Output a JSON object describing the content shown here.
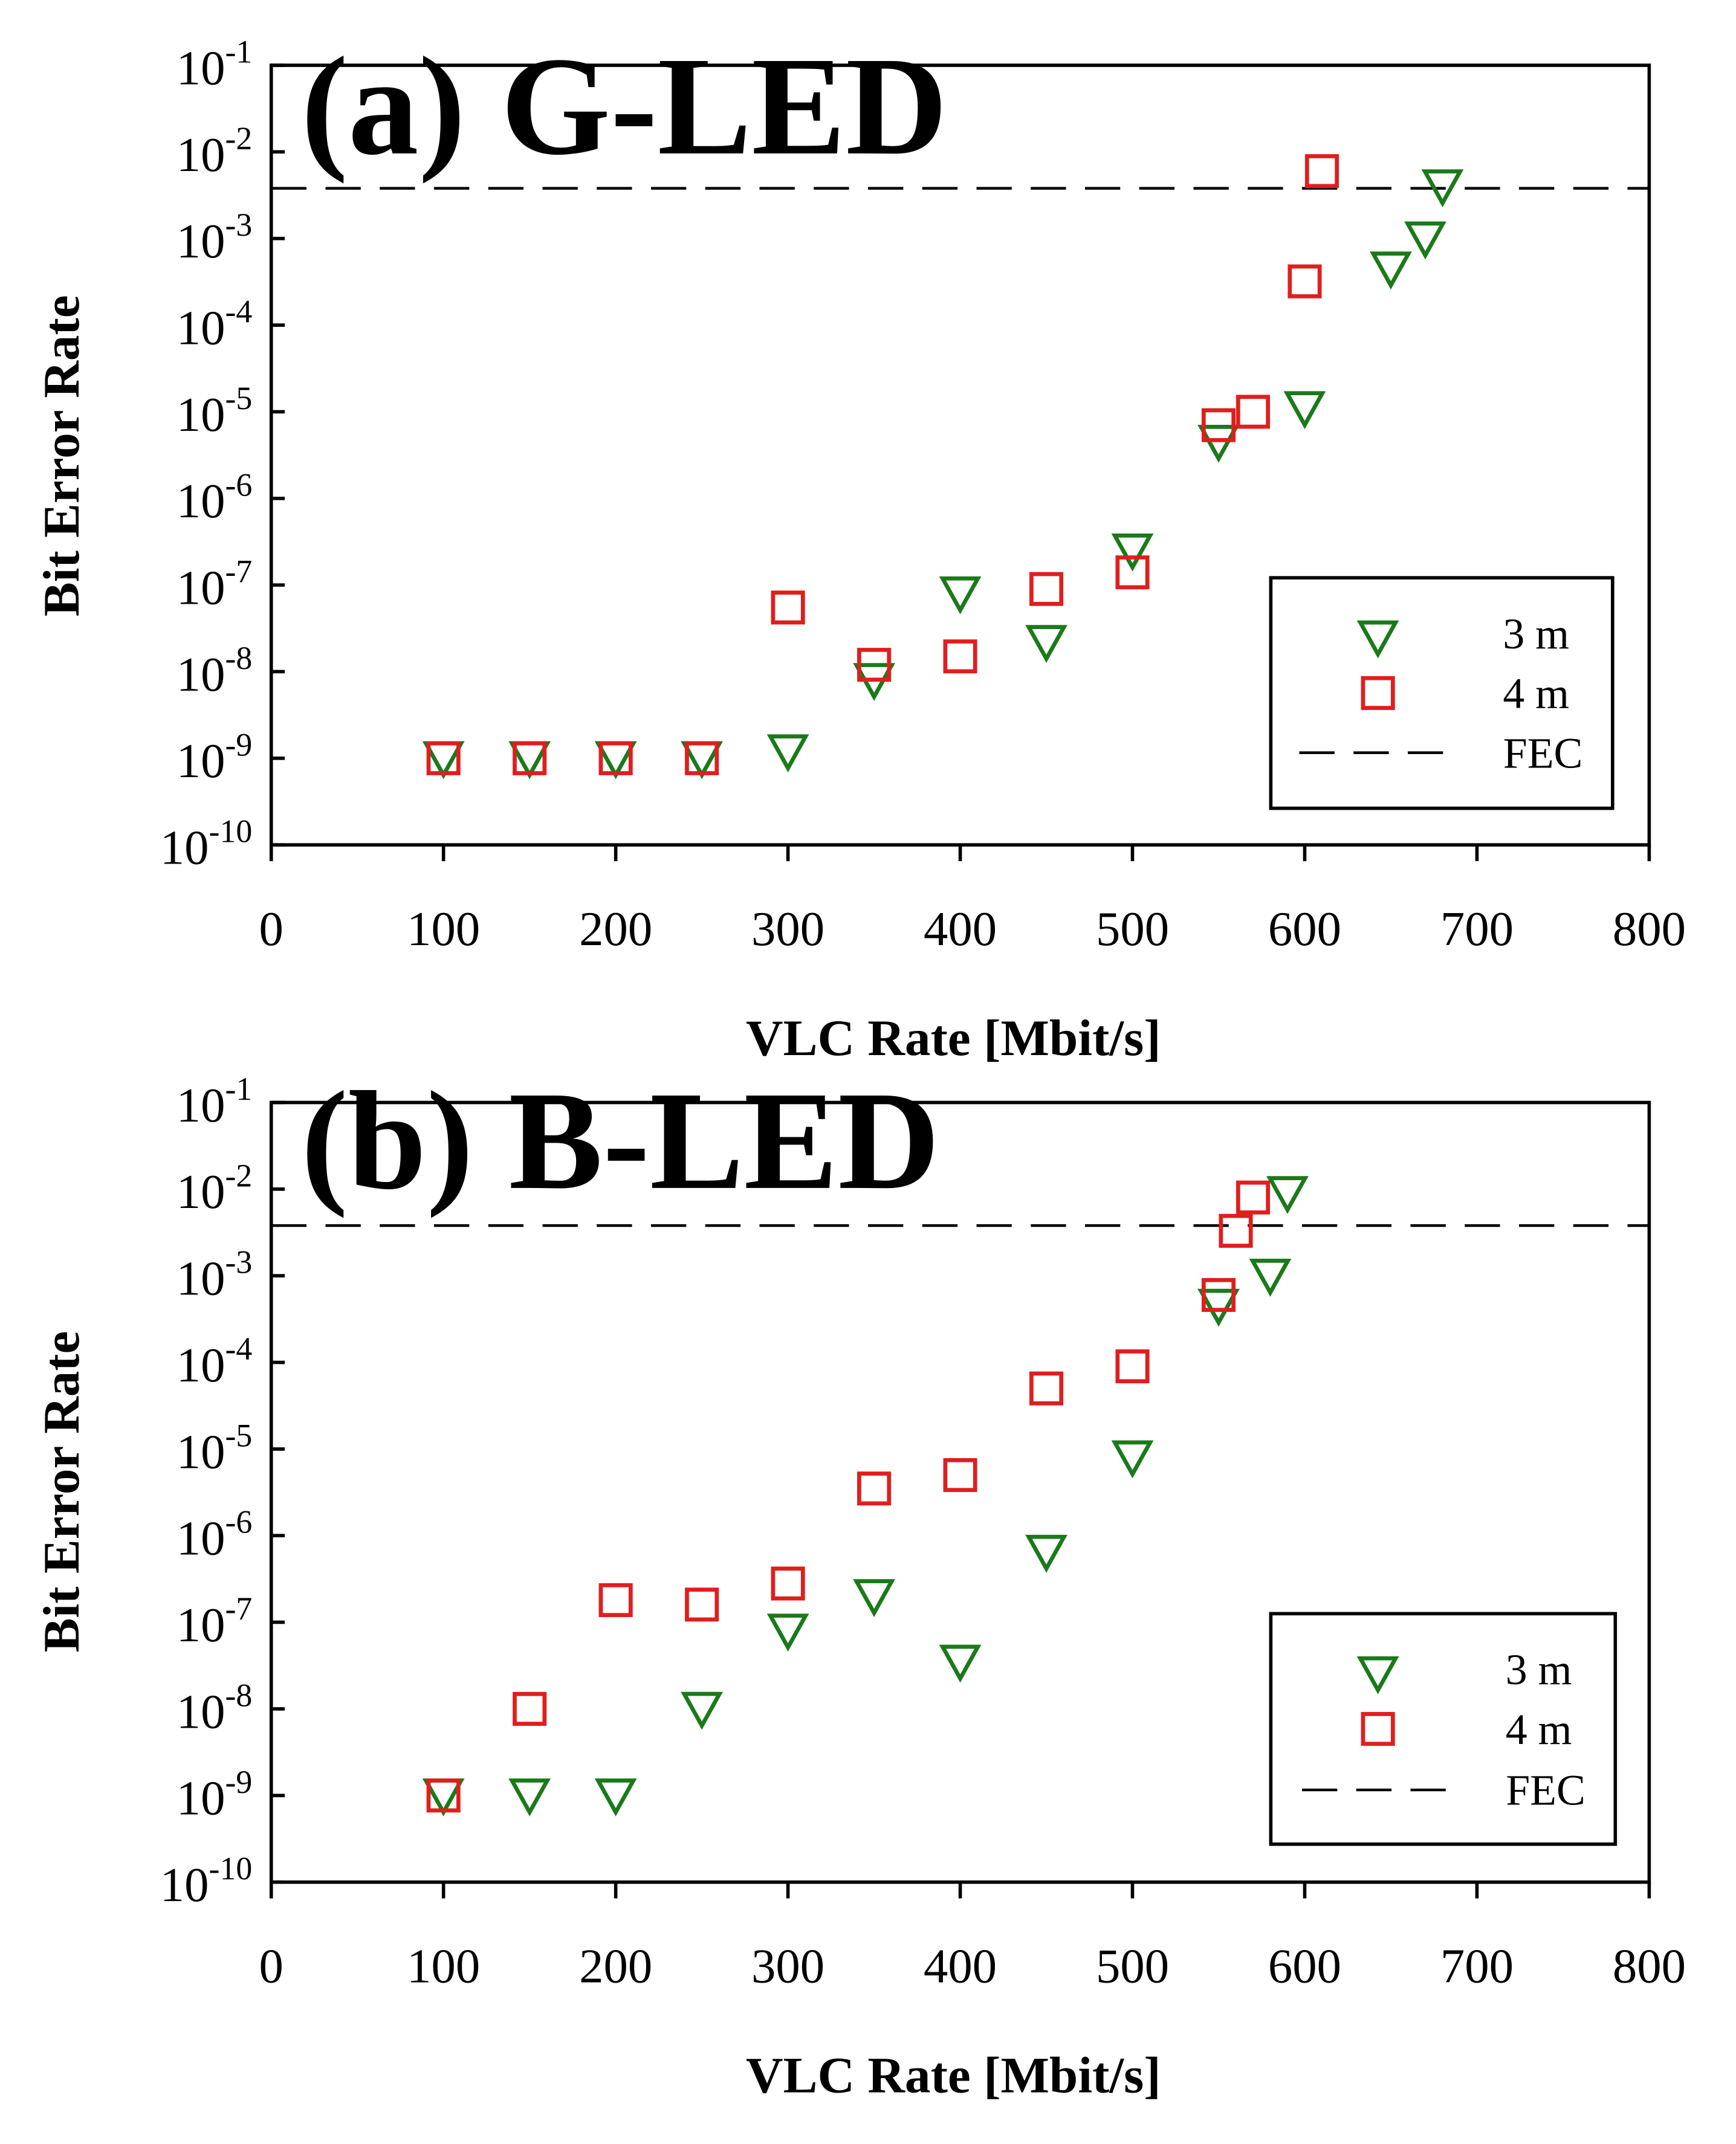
{
  "chart_data": [
    {
      "type": "scatter",
      "title": "(a) G-LED",
      "xlabel": "VLC Rate [Mbit/s]",
      "ylabel": "Bit Error Rate",
      "xlim": [
        0,
        800
      ],
      "ylim": [
        1e-10,
        0.1
      ],
      "yscale": "log",
      "x_ticks": [
        "0",
        "100",
        "200",
        "300",
        "400",
        "500",
        "600",
        "700",
        "800"
      ],
      "y_ticks": [
        {
          "base": "10",
          "exp": "-1"
        },
        {
          "base": "10",
          "exp": "-2"
        },
        {
          "base": "10",
          "exp": "-3"
        },
        {
          "base": "10",
          "exp": "-4"
        },
        {
          "base": "10",
          "exp": "-5"
        },
        {
          "base": "10",
          "exp": "-6"
        },
        {
          "base": "10",
          "exp": "-7"
        },
        {
          "base": "10",
          "exp": "-8"
        },
        {
          "base": "10",
          "exp": "-9"
        },
        {
          "base": "10",
          "exp": "-10"
        }
      ],
      "legend_position": "bottom-right",
      "series": [
        {
          "name": "3 m",
          "marker": "triangle-down",
          "color": "#1a7a1a",
          "points": [
            [
              100,
              1e-09
            ],
            [
              150,
              1e-09
            ],
            [
              200,
              1e-09
            ],
            [
              250,
              1e-09
            ],
            [
              300,
              1.2e-09
            ],
            [
              350,
              8e-09
            ],
            [
              400,
              8e-08
            ],
            [
              450,
              2.2e-08
            ],
            [
              500,
              2.5e-07
            ],
            [
              550,
              4.5e-06
            ],
            [
              600,
              1.1e-05
            ],
            [
              650,
              0.00045
            ],
            [
              670,
              0.001
            ],
            [
              680,
              0.004
            ]
          ]
        },
        {
          "name": "4 m",
          "marker": "square",
          "color": "#e01e1e",
          "points": [
            [
              100,
              1e-09
            ],
            [
              150,
              1e-09
            ],
            [
              200,
              1e-09
            ],
            [
              250,
              1e-09
            ],
            [
              300,
              5.5e-08
            ],
            [
              350,
              1.2e-08
            ],
            [
              400,
              1.5e-08
            ],
            [
              450,
              9e-08
            ],
            [
              500,
              1.4e-07
            ],
            [
              550,
              7e-06
            ],
            [
              570,
              1e-05
            ],
            [
              600,
              0.00032
            ],
            [
              610,
              0.006
            ]
          ]
        }
      ],
      "reference_line": {
        "name": "FEC",
        "y": 0.0038,
        "style": "dashed"
      }
    },
    {
      "type": "scatter",
      "title": "(b) B-LED",
      "xlabel": "VLC Rate [Mbit/s]",
      "ylabel": "Bit Error Rate",
      "xlim": [
        0,
        800
      ],
      "ylim": [
        1e-10,
        0.1
      ],
      "yscale": "log",
      "x_ticks": [
        "0",
        "100",
        "200",
        "300",
        "400",
        "500",
        "600",
        "700",
        "800"
      ],
      "y_ticks": [
        {
          "base": "10",
          "exp": "-1"
        },
        {
          "base": "10",
          "exp": "-2"
        },
        {
          "base": "10",
          "exp": "-3"
        },
        {
          "base": "10",
          "exp": "-4"
        },
        {
          "base": "10",
          "exp": "-5"
        },
        {
          "base": "10",
          "exp": "-6"
        },
        {
          "base": "10",
          "exp": "-7"
        },
        {
          "base": "10",
          "exp": "-8"
        },
        {
          "base": "10",
          "exp": "-9"
        },
        {
          "base": "10",
          "exp": "-10"
        }
      ],
      "legend_position": "bottom-right",
      "series": [
        {
          "name": "3 m",
          "marker": "triangle-down",
          "color": "#1a7a1a",
          "points": [
            [
              100,
              1e-09
            ],
            [
              150,
              1e-09
            ],
            [
              200,
              1e-09
            ],
            [
              250,
              1e-08
            ],
            [
              300,
              8e-08
            ],
            [
              350,
              2e-07
            ],
            [
              400,
              3.5e-08
            ],
            [
              450,
              6.5e-07
            ],
            [
              500,
              8e-06
            ],
            [
              550,
              0.00045
            ],
            [
              580,
              0.001
            ],
            [
              590,
              0.009
            ]
          ]
        },
        {
          "name": "4 m",
          "marker": "square",
          "color": "#e01e1e",
          "points": [
            [
              100,
              1e-09
            ],
            [
              150,
              1e-08
            ],
            [
              200,
              1.8e-07
            ],
            [
              250,
              1.6e-07
            ],
            [
              300,
              2.8e-07
            ],
            [
              350,
              3.5e-06
            ],
            [
              400,
              5e-06
            ],
            [
              450,
              5e-05
            ],
            [
              500,
              9e-05
            ],
            [
              550,
              0.0006
            ],
            [
              560,
              0.0033
            ],
            [
              570,
              0.008
            ]
          ]
        }
      ],
      "reference_line": {
        "name": "FEC",
        "y": 0.0038,
        "style": "dashed"
      }
    }
  ]
}
